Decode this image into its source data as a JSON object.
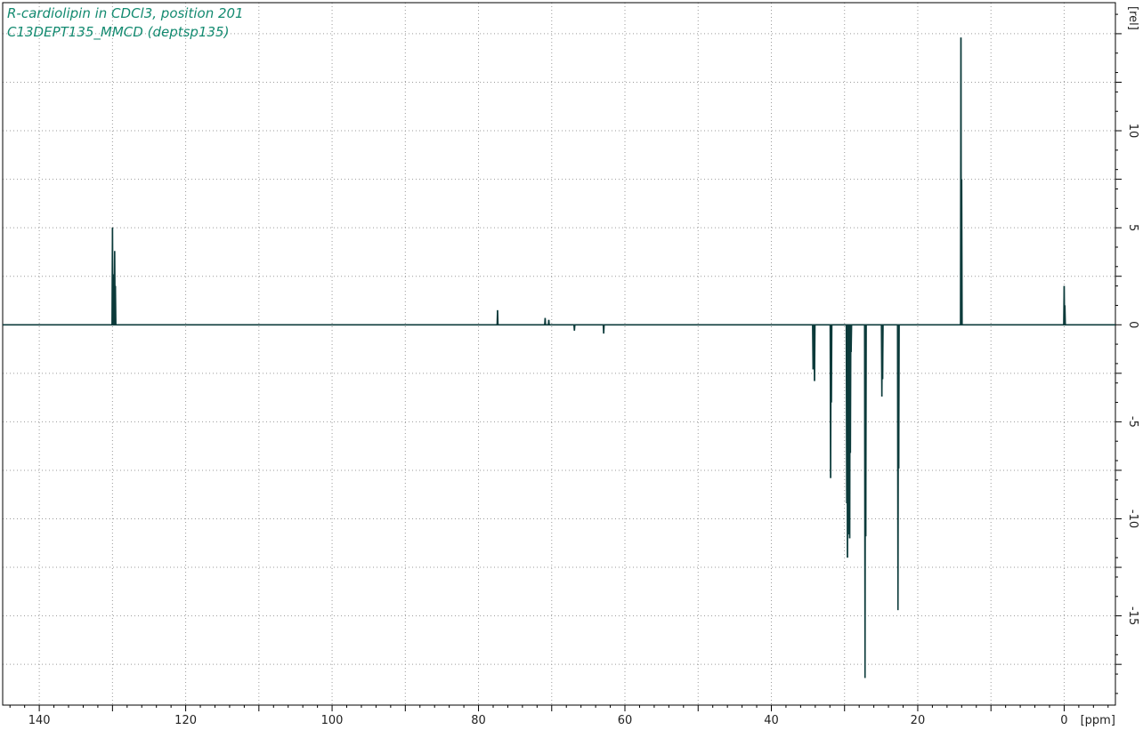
{
  "chart_data": {
    "type": "line",
    "title": "R-cardiolipin in CDCl3, position 201",
    "subtitle": "C13DEPT135_MMCD (deptsp135)",
    "xlabel": "[ppm]",
    "ylabel": "[rel]",
    "xlim": [
      145,
      -7
    ],
    "ylim": [
      -19.6,
      16.6
    ],
    "x_ticks": [
      140,
      120,
      100,
      80,
      60,
      40,
      20,
      0
    ],
    "y_ticks": [
      -15,
      -10,
      -5,
      0,
      5,
      10
    ],
    "grid": true,
    "colors": {
      "spectrum": "#0c3b3b",
      "title": "#138a70",
      "grid": "#9a9a9a"
    },
    "baseline": 0,
    "peaks": [
      {
        "x": 130.0,
        "y": 5.0
      },
      {
        "x": 129.9,
        "y": 2.6
      },
      {
        "x": 129.7,
        "y": 3.8
      },
      {
        "x": 129.6,
        "y": 2.0
      },
      {
        "x": 77.4,
        "y": 0.75
      },
      {
        "x": 70.9,
        "y": 0.35
      },
      {
        "x": 70.4,
        "y": 0.25
      },
      {
        "x": 66.9,
        "y": -0.3
      },
      {
        "x": 62.9,
        "y": -0.45
      },
      {
        "x": 34.3,
        "y": -2.3
      },
      {
        "x": 34.1,
        "y": -2.9
      },
      {
        "x": 31.9,
        "y": -7.9
      },
      {
        "x": 31.8,
        "y": -4.0
      },
      {
        "x": 29.7,
        "y": -9.2
      },
      {
        "x": 29.6,
        "y": -12.0
      },
      {
        "x": 29.5,
        "y": -10.8
      },
      {
        "x": 29.3,
        "y": -11.0
      },
      {
        "x": 29.2,
        "y": -6.6
      },
      {
        "x": 29.1,
        "y": -1.4
      },
      {
        "x": 27.2,
        "y": -18.2
      },
      {
        "x": 27.1,
        "y": -10.9
      },
      {
        "x": 24.9,
        "y": -3.7
      },
      {
        "x": 24.8,
        "y": -2.8
      },
      {
        "x": 22.7,
        "y": -14.7
      },
      {
        "x": 22.6,
        "y": -7.4
      },
      {
        "x": 14.1,
        "y": 14.8
      },
      {
        "x": 14.0,
        "y": 7.5
      },
      {
        "x": 0.0,
        "y": 2.0
      },
      {
        "x": -0.1,
        "y": 1.0
      }
    ]
  }
}
